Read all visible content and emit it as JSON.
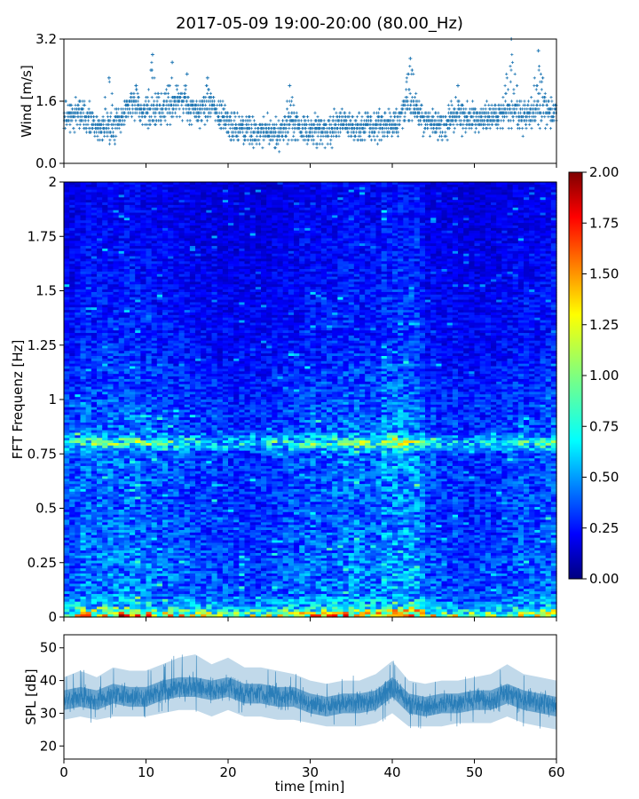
{
  "figure": {
    "title": "2017-05-09 19:00-20:00 (80.00_Hz)"
  },
  "chart_data": [
    {
      "type": "scatter",
      "panel": "wind",
      "ylabel": "Wind [m/s]",
      "xlim": [
        0,
        60
      ],
      "ylim": [
        0.0,
        3.2
      ],
      "yticks": [
        0.0,
        1.6,
        3.2
      ],
      "ytick_labels": [
        "0.0",
        "1.6",
        "3.2"
      ],
      "marker_color": "#1f77b4",
      "marker": "+",
      "series": [
        {
          "x_min": [
            0,
            2,
            4,
            6,
            8,
            10,
            12,
            14,
            16,
            18,
            20,
            22,
            24,
            26,
            28,
            30,
            32,
            34,
            36,
            38,
            40,
            42,
            44,
            46,
            48,
            50,
            52,
            54,
            56,
            58,
            60
          ],
          "values": [
            1.2,
            1.3,
            0.9,
            0.9,
            1.5,
            1.2,
            1.4,
            1.5,
            1.3,
            1.4,
            1.0,
            0.9,
            0.8,
            0.8,
            0.9,
            0.9,
            0.8,
            1.1,
            0.9,
            1.0,
            1.0,
            1.4,
            1.1,
            1.0,
            1.2,
            1.1,
            1.2,
            1.3,
            1.2,
            1.4,
            1.2
          ],
          "peaks": [
            {
              "x": 5.5,
              "y": 2.2
            },
            {
              "x": 8.8,
              "y": 2.0
            },
            {
              "x": 10.8,
              "y": 2.8
            },
            {
              "x": 13.2,
              "y": 2.6
            },
            {
              "x": 15.0,
              "y": 2.3
            },
            {
              "x": 17.5,
              "y": 2.2
            },
            {
              "x": 27.5,
              "y": 2.0
            },
            {
              "x": 42.2,
              "y": 2.7
            },
            {
              "x": 48.0,
              "y": 2.0
            },
            {
              "x": 54.5,
              "y": 3.2
            },
            {
              "x": 57.8,
              "y": 2.9
            }
          ]
        }
      ]
    },
    {
      "type": "heatmap",
      "panel": "spectrogram",
      "ylabel": "FFT Frequenz [Hz]",
      "xlim": [
        0,
        60
      ],
      "ylim": [
        0,
        2
      ],
      "yticks": [
        0,
        0.25,
        0.5,
        0.75,
        1,
        1.25,
        1.5,
        1.75,
        2
      ],
      "ytick_labels": [
        "0",
        "0.25",
        "0.5",
        "0.75",
        "1",
        "1.25",
        "1.5",
        "1.75",
        "2"
      ],
      "colormap": "jet",
      "value_range": [
        0.0,
        2.0
      ],
      "colorbar_ticks": [
        "0.00",
        "0.25",
        "0.50",
        "0.75",
        "1.00",
        "1.25",
        "1.50",
        "1.75",
        "2.00"
      ],
      "profile": {
        "frequency_hz": [
          0,
          0.05,
          0.1,
          0.25,
          0.5,
          0.75,
          0.8,
          0.85,
          1.0,
          1.25,
          1.5,
          1.75,
          2.0
        ],
        "typical_value": [
          1.2,
          0.6,
          0.45,
          0.42,
          0.38,
          0.4,
          0.8,
          0.4,
          0.35,
          0.28,
          0.25,
          0.22,
          0.2
        ]
      },
      "features": [
        {
          "frequency_hz": 0.82,
          "value": 0.8
        },
        {
          "frequency_hz": 0.01,
          "value": 1.6
        }
      ]
    },
    {
      "type": "area",
      "panel": "spl",
      "xlabel": "time [min]",
      "ylabel": "SPL [dB]",
      "xlim": [
        0,
        60
      ],
      "ylim": [
        16,
        54
      ],
      "xticks": [
        0,
        10,
        20,
        30,
        40,
        50,
        60
      ],
      "xtick_labels": [
        "0",
        "10",
        "20",
        "30",
        "40",
        "50",
        "60"
      ],
      "yticks": [
        20,
        30,
        40,
        50
      ],
      "ytick_labels": [
        "20",
        "30",
        "40",
        "50"
      ],
      "color": "#1f77b4",
      "series": [
        {
          "x": [
            0,
            2,
            4,
            6,
            8,
            10,
            12,
            14,
            16,
            18,
            20,
            22,
            24,
            26,
            28,
            30,
            32,
            34,
            36,
            38,
            40,
            42,
            44,
            46,
            48,
            50,
            52,
            54,
            56,
            58,
            60
          ],
          "values": [
            34,
            35,
            34,
            36,
            35,
            35,
            37,
            38,
            38,
            37,
            38,
            36,
            36,
            35,
            35,
            33,
            32,
            33,
            33,
            34,
            38,
            33,
            32,
            33,
            33,
            34,
            34,
            36,
            34,
            33,
            32
          ],
          "min": [
            28,
            29,
            28,
            29,
            29,
            29,
            30,
            31,
            31,
            29,
            31,
            29,
            29,
            28,
            28,
            27,
            26,
            26,
            26,
            27,
            30,
            26,
            26,
            26,
            27,
            27,
            27,
            29,
            27,
            26,
            25
          ],
          "max": [
            41,
            43,
            41,
            44,
            43,
            43,
            45,
            47,
            48,
            45,
            47,
            44,
            44,
            43,
            42,
            40,
            39,
            40,
            40,
            42,
            46,
            40,
            39,
            40,
            40,
            41,
            42,
            45,
            42,
            41,
            40
          ]
        }
      ]
    }
  ]
}
